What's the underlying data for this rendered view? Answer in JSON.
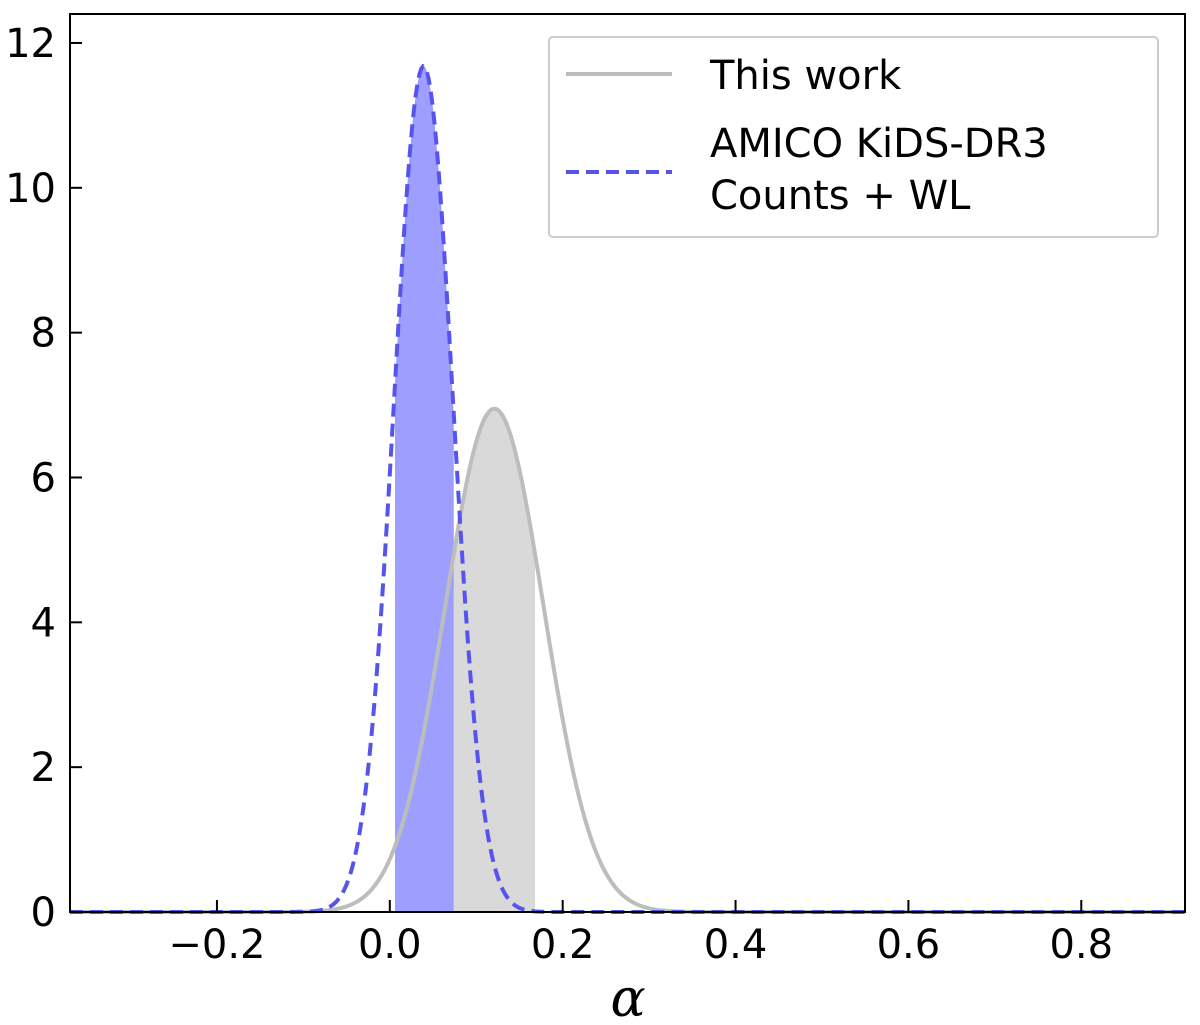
{
  "chart_data": {
    "type": "line",
    "xlabel": "α",
    "ylabel": "",
    "xlim": [
      -0.37,
      0.92
    ],
    "ylim": [
      0,
      12.4
    ],
    "grid": false,
    "x_ticks": [
      -0.2,
      0.0,
      0.2,
      0.4,
      0.6,
      0.8
    ],
    "x_tick_labels": [
      "−0.2",
      "0.0",
      "0.2",
      "0.4",
      "0.6",
      "0.8"
    ],
    "y_ticks": [
      0,
      2,
      4,
      6,
      8,
      10,
      12
    ],
    "y_tick_labels": [
      "0",
      "2",
      "4",
      "6",
      "8",
      "10",
      "12"
    ],
    "legend": {
      "placement": "top-right",
      "entries": [
        "This work",
        "AMICO KiDS-DR3",
        "Counts + WL"
      ]
    },
    "series": [
      {
        "name": "This work",
        "style": "solid",
        "color": "#bdbdbd",
        "peak_x": 0.121,
        "peak_y": 6.95,
        "sigma": 0.057,
        "shaded_interval": [
          0.074,
          0.168
        ],
        "shade_color": "#d9d9d9"
      },
      {
        "name": "AMICO KiDS-DR3 Counts + WL",
        "style": "dashed",
        "color": "#5555ee",
        "peak_x": 0.039,
        "peak_y": 11.68,
        "sigma": 0.034,
        "shaded_interval": [
          0.006,
          0.074
        ],
        "shade_color": "#9999ff"
      }
    ]
  }
}
